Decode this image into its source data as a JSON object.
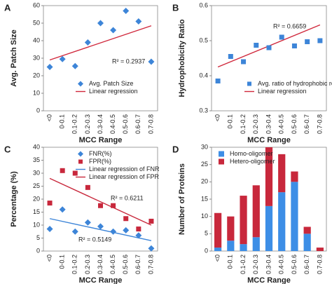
{
  "chart_data": [
    {
      "type": "scatter",
      "panel": "A",
      "xlabel": "MCC Range",
      "ylabel": "Avg. Patch Size",
      "categories": [
        "<0",
        "0-0.1",
        "0.1-0.2",
        "0.2-0.3",
        "0.3-0.4",
        "0.4-0.5",
        "0.5-0.6",
        "0.6-0.7",
        "0.7-0.8"
      ],
      "ylim": [
        0,
        60
      ],
      "yticks": [
        0,
        10,
        20,
        30,
        40,
        50,
        60
      ],
      "legend": "lower right",
      "series": [
        {
          "name": "Avg. Patch Size",
          "color": "#3d85d8",
          "marker": "diamond",
          "values": [
            25,
            29.5,
            25.5,
            39,
            50,
            46,
            57,
            51,
            28
          ]
        }
      ],
      "trends": [
        {
          "name": "Linear regression",
          "color": "#d0283c",
          "values": [
            29,
            48.5
          ]
        }
      ],
      "annotations": [
        "R² = 0.2937"
      ]
    },
    {
      "type": "scatter",
      "panel": "B",
      "xlabel": "MCC Range",
      "ylabel": "Hydrophobicity Ratio",
      "categories": [
        "<0",
        "0-0.1",
        "0.1-0.2",
        "0.2-0.3",
        "0.3-0.4",
        "0.4-0.5",
        "0.5-0.6",
        "0.6-0.7",
        "0.7-0.8"
      ],
      "ylim": [
        0.3,
        0.6
      ],
      "yticks": [
        0.3,
        0.4,
        0.5,
        0.6
      ],
      "legend": "lower right",
      "series": [
        {
          "name": "Avg. ratio of hydrophobic residue",
          "color": "#3d85d8",
          "marker": "square",
          "values": [
            0.385,
            0.455,
            0.44,
            0.487,
            0.48,
            0.51,
            0.485,
            0.497,
            0.5
          ]
        }
      ],
      "trends": [
        {
          "name": "Linear regression",
          "color": "#d0283c",
          "values": [
            0.425,
            0.545
          ]
        }
      ],
      "annotations": [
        "R² = 0.6659"
      ]
    },
    {
      "type": "scatter",
      "panel": "C",
      "xlabel": "MCC Range",
      "ylabel": "Percentage (%)",
      "categories": [
        "<0",
        "0-0.1",
        "0.1-0.2",
        "0.2-0.3",
        "0.3-0.4",
        "0.4-0.5",
        "0.5-0.6",
        "0.6-0.7",
        "0.7-0.8"
      ],
      "ylim": [
        0,
        40
      ],
      "yticks": [
        0,
        5,
        10,
        15,
        20,
        25,
        30,
        35,
        40
      ],
      "legend": "upper right",
      "series": [
        {
          "name": "FNR(%)",
          "color": "#3d85d8",
          "marker": "diamond",
          "values": [
            8.5,
            16,
            7.5,
            11,
            9.5,
            7.5,
            8,
            6,
            1
          ]
        },
        {
          "name": "FPR(%)",
          "color": "#c8283c",
          "marker": "square",
          "values": [
            18.5,
            31,
            30,
            24.5,
            17.5,
            17.5,
            12.5,
            8.5,
            11.5
          ]
        }
      ],
      "trends": [
        {
          "name": "Linear regression of FNR",
          "color": "#3d85d8",
          "values": [
            12.5,
            4
          ]
        },
        {
          "name": "Linear regression of FPR",
          "color": "#c8283c",
          "values": [
            28,
            10
          ]
        }
      ],
      "annotations": [
        "R² = 0.6211",
        "R² = 0.5149"
      ]
    },
    {
      "type": "bar",
      "panel": "D",
      "xlabel": "MCC Range",
      "ylabel": "Number of Proteins",
      "categories": [
        "<0",
        "0-0.1",
        "0.1-0.2",
        "0.2-0.3",
        "0.3-0.4",
        "0.4-0.5",
        "0.5-0.6",
        "0.6-0.7",
        "0.7-0.8"
      ],
      "ylim": [
        0,
        30
      ],
      "yticks": [
        0,
        5,
        10,
        15,
        20,
        25,
        30
      ],
      "legend": "upper left",
      "stacked": true,
      "series": [
        {
          "name": "Homo-oligomer",
          "color": "#3d8ee6",
          "values": [
            1,
            3,
            2,
            4,
            13,
            17,
            20,
            5,
            0
          ]
        },
        {
          "name": "Hetero-oligomer",
          "color": "#c8283c",
          "values": [
            10,
            7,
            14,
            15,
            17,
            11,
            3,
            2,
            1
          ]
        }
      ],
      "annotations": []
    }
  ]
}
